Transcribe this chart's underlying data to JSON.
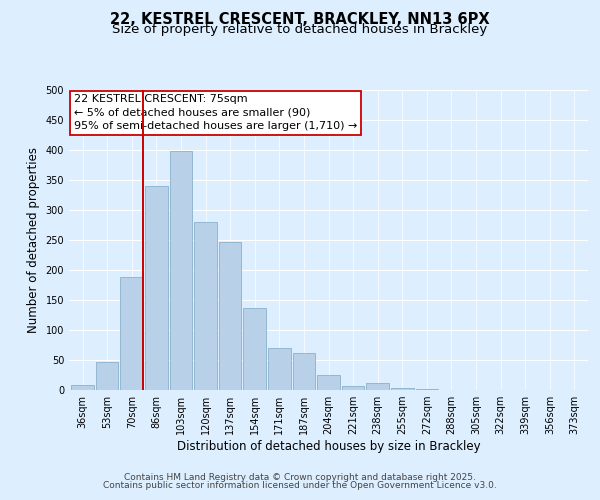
{
  "title_line1": "22, KESTREL CRESCENT, BRACKLEY, NN13 6PX",
  "title_line2": "Size of property relative to detached houses in Brackley",
  "xlabel": "Distribution of detached houses by size in Brackley",
  "ylabel": "Number of detached properties",
  "bar_labels": [
    "36sqm",
    "53sqm",
    "70sqm",
    "86sqm",
    "103sqm",
    "120sqm",
    "137sqm",
    "154sqm",
    "171sqm",
    "187sqm",
    "204sqm",
    "221sqm",
    "238sqm",
    "255sqm",
    "272sqm",
    "288sqm",
    "305sqm",
    "322sqm",
    "339sqm",
    "356sqm",
    "373sqm"
  ],
  "bar_values": [
    8,
    46,
    188,
    340,
    398,
    280,
    246,
    137,
    70,
    62,
    25,
    7,
    12,
    3,
    1,
    0,
    0,
    0,
    0,
    0,
    0
  ],
  "bar_color": "#b8d0e8",
  "bar_edge_color": "#8ab0cc",
  "vline_color": "#cc0000",
  "annotation_line1": "22 KESTREL CRESCENT: 75sqm",
  "annotation_line2": "← 5% of detached houses are smaller (90)",
  "annotation_line3": "95% of semi-detached houses are larger (1,710) →",
  "annotation_box_edgecolor": "#cc0000",
  "annotation_box_facecolor": "#ffffff",
  "ylim": [
    0,
    500
  ],
  "yticks": [
    0,
    50,
    100,
    150,
    200,
    250,
    300,
    350,
    400,
    450,
    500
  ],
  "bg_color": "#ddeeff",
  "plot_bg_color": "#ddeeff",
  "footnote_line1": "Contains HM Land Registry data © Crown copyright and database right 2025.",
  "footnote_line2": "Contains public sector information licensed under the Open Government Licence v3.0.",
  "title_fontsize": 10.5,
  "subtitle_fontsize": 9.5,
  "axis_label_fontsize": 8.5,
  "tick_fontsize": 7,
  "annotation_fontsize": 8,
  "footnote_fontsize": 6.5
}
